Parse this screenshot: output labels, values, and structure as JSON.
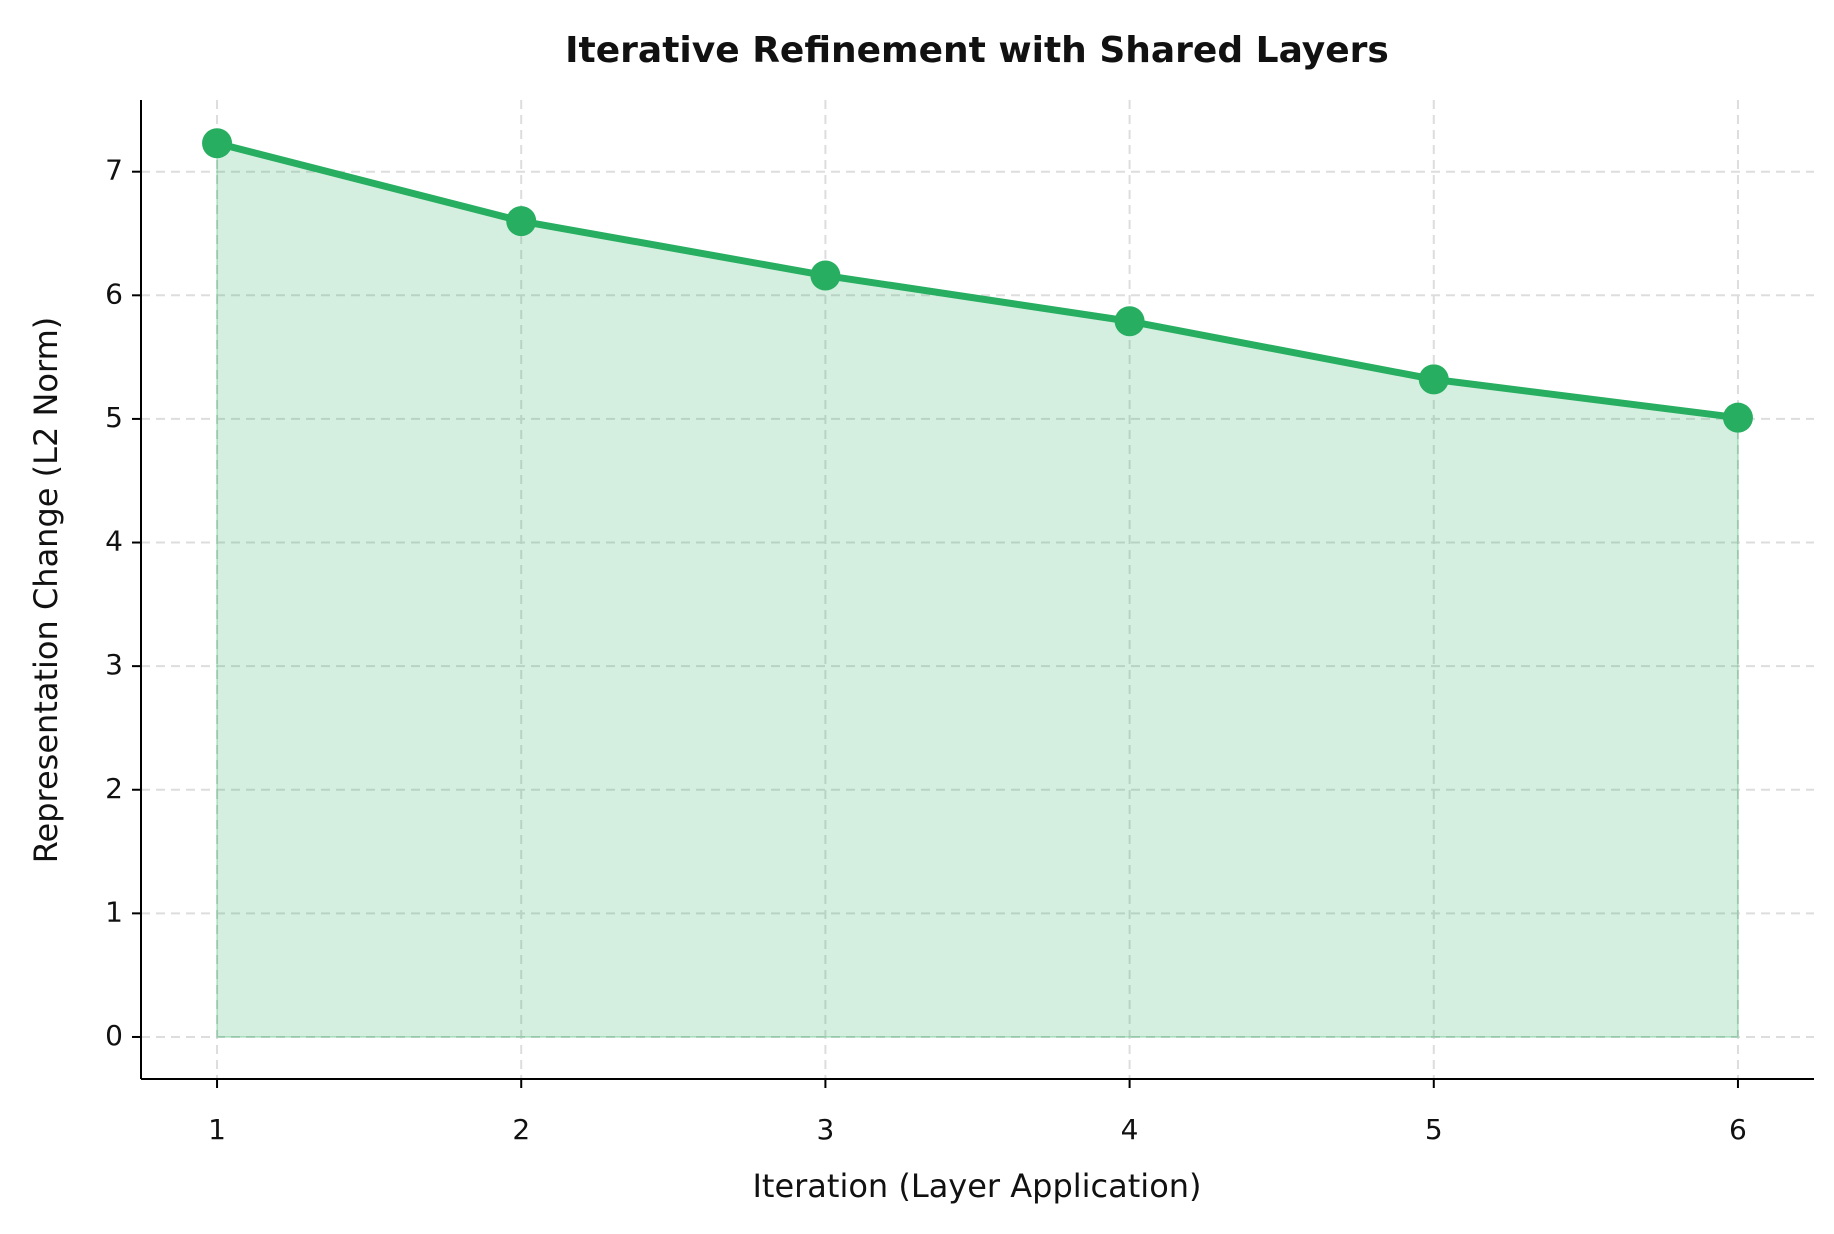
{
  "chart_data": {
    "type": "area",
    "title": "Iterative Refinement with Shared Layers",
    "x_label": "Iteration (Layer Application)",
    "y_label": "Representation Change (L2 Norm)",
    "x": [
      1,
      2,
      3,
      4,
      5,
      6
    ],
    "values": [
      7.23,
      6.6,
      6.16,
      5.79,
      5.32,
      5.01
    ],
    "color": "#27ae60",
    "xlim": [
      0.75,
      6.25
    ],
    "xticks": [
      1,
      2,
      3,
      4,
      5,
      6
    ],
    "ylim": [
      -0.34,
      7.58
    ],
    "yticks": [
      0,
      1,
      2,
      3,
      4,
      5,
      6,
      7
    ],
    "grid": true
  }
}
